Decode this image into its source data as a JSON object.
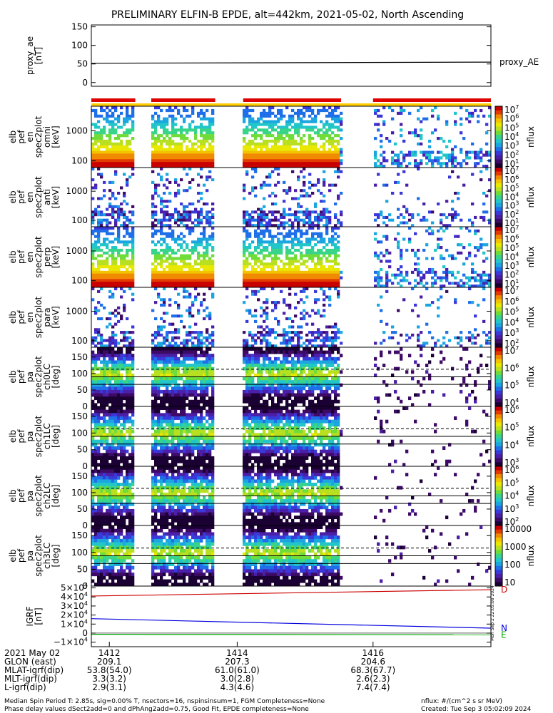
{
  "title": "PRELIMINARY ELFIN-B EPDE, alt=442km, 2021-05-02, North Ascending",
  "chart_data": {
    "type": "heatmap",
    "panels": [
      {
        "id": "proxy_ae",
        "kind": "line",
        "ylabel": [
          "proxy_ae",
          "[nT]"
        ],
        "yticks": [
          "150",
          "100",
          "50",
          "0"
        ],
        "ylim": [
          -10,
          155
        ],
        "series": [
          {
            "name": "proxy_AE",
            "x": [
              0,
              1
            ],
            "y": [
              52,
              55
            ],
            "color": "#000000"
          }
        ]
      },
      {
        "id": "en_omni",
        "kind": "spectrogram",
        "ylabel": [
          "elb",
          "pef",
          "en",
          "spec2plot",
          "omni",
          "[keV]"
        ],
        "yticks": [
          "1000",
          "100"
        ],
        "yscale": "log",
        "ylim": [
          60,
          6500
        ],
        "colorbar": {
          "label": "nflux",
          "ticks": [
            "10^7",
            "10^6",
            "10^5",
            "10^4",
            "10^3",
            "10^2",
            "10^1"
          ]
        }
      },
      {
        "id": "en_anti",
        "kind": "spectrogram",
        "ylabel": [
          "elb",
          "pef",
          "en",
          "spec2plot",
          "anti",
          "[keV]"
        ],
        "yticks": [
          "1000",
          "100"
        ],
        "yscale": "log",
        "ylim": [
          60,
          6500
        ],
        "colorbar": {
          "label": "nflux",
          "ticks": [
            "10^7",
            "10^6",
            "10^5",
            "10^4",
            "10^3",
            "10^2",
            "10^1"
          ]
        }
      },
      {
        "id": "en_perp",
        "kind": "spectrogram",
        "ylabel": [
          "elb",
          "pef",
          "en",
          "spec2plot",
          "perp",
          "[keV]"
        ],
        "yticks": [
          "1000",
          "100"
        ],
        "yscale": "log",
        "ylim": [
          60,
          6500
        ],
        "colorbar": {
          "label": "nflux",
          "ticks": [
            "10^7",
            "10^6",
            "10^5",
            "10^4",
            "10^3",
            "10^2",
            "10^1"
          ]
        }
      },
      {
        "id": "en_para",
        "kind": "spectrogram",
        "ylabel": [
          "elb",
          "pef",
          "en",
          "spec2plot",
          "para",
          "[keV]"
        ],
        "yticks": [
          "1000",
          "100"
        ],
        "yscale": "log",
        "ylim": [
          60,
          6500
        ],
        "colorbar": {
          "label": "nflux",
          "ticks": [
            "10^7",
            "10^6",
            "10^5",
            "10^4",
            "10^3",
            "10^2"
          ]
        }
      },
      {
        "id": "pa_ch0",
        "kind": "spectrogram",
        "ylabel": [
          "elb",
          "pef",
          "pa",
          "spec2plot",
          "ch0LC",
          "[deg]"
        ],
        "yticks": [
          "150",
          "100",
          "50",
          "0"
        ],
        "ylim": [
          0,
          180
        ],
        "colorbar": {
          "label": "nflux",
          "ticks": [
            "10^7",
            "10^6",
            "10^5",
            "10^4"
          ]
        }
      },
      {
        "id": "pa_ch1",
        "kind": "spectrogram",
        "ylabel": [
          "elb",
          "pef",
          "pa",
          "spec2plot",
          "ch1LC",
          "[deg]"
        ],
        "yticks": [
          "150",
          "100",
          "50",
          "0"
        ],
        "ylim": [
          0,
          180
        ],
        "colorbar": {
          "label": "nflux",
          "ticks": [
            "10^6",
            "10^5",
            "10^4",
            "10^3"
          ]
        }
      },
      {
        "id": "pa_ch2",
        "kind": "spectrogram",
        "ylabel": [
          "elb",
          "pef",
          "pa",
          "spec2plot",
          "ch2LC",
          "[deg]"
        ],
        "yticks": [
          "150",
          "100",
          "50",
          "0"
        ],
        "ylim": [
          0,
          180
        ],
        "colorbar": {
          "label": "nflux",
          "ticks": [
            "10^6",
            "10^5",
            "10^4",
            "10^3",
            "10^2"
          ]
        }
      },
      {
        "id": "pa_ch3",
        "kind": "spectrogram",
        "ylabel": [
          "elb",
          "pef",
          "pa",
          "spec2plot",
          "ch3LC",
          "[deg]"
        ],
        "yticks": [
          "150",
          "100",
          "50",
          "0"
        ],
        "ylim": [
          0,
          180
        ],
        "colorbar": {
          "label": "nflux",
          "ticks": [
            "10000",
            "1000",
            "100",
            "10"
          ]
        }
      },
      {
        "id": "igrf",
        "kind": "line",
        "ylabel": [
          "IGRF",
          "[nT]"
        ],
        "yticks": [
          "5×10^4",
          "4×10^4",
          "3×10^4",
          "2×10^4",
          "1×10^4",
          "0",
          "−1×10^4"
        ],
        "ylim": [
          -15000,
          52000
        ],
        "series": [
          {
            "name": "D",
            "x": [
              0,
              1
            ],
            "y": [
              41000,
              48000
            ],
            "color": "#cc0000"
          },
          {
            "name": "N",
            "x": [
              0,
              1
            ],
            "y": [
              16000,
              5500
            ],
            "color": "#0000dd"
          },
          {
            "name": "E",
            "x": [
              0,
              1
            ],
            "y": [
              -1300,
              -1800
            ],
            "color": "#00aa00"
          }
        ]
      }
    ],
    "pa_reference_lines": [
      {
        "deg": 113,
        "style": "dashed"
      },
      {
        "deg": 90,
        "style": "solid"
      },
      {
        "deg": 67,
        "style": "solid"
      }
    ],
    "time_axis": {
      "date_label": "2021 May 02",
      "ticks": [
        "1412",
        "1414",
        "1416"
      ],
      "rows": [
        {
          "label": "GLON (east)",
          "values": [
            "209.1",
            "207.3",
            "204.6"
          ]
        },
        {
          "label": "MLAT-igrf(dip)",
          "values": [
            "53.8(54.0)",
            "61.0(61.0)",
            "68.3(67.7)"
          ]
        },
        {
          "label": "MLT-igrf(dip)",
          "values": [
            "3.3(3.2)",
            "3.0(2.8)",
            "2.6(2.3)"
          ]
        },
        {
          "label": "L-igrf(dip)",
          "values": [
            "2.9(3.1)",
            "4.3(4.6)",
            "7.4(7.4)"
          ]
        }
      ]
    },
    "science_zones": [
      {
        "start": 0.0,
        "end": 0.11
      },
      {
        "start": 0.15,
        "end": 0.31
      },
      {
        "start": 0.38,
        "end": 0.625
      },
      {
        "start": 0.705,
        "end": 1.0
      }
    ]
  },
  "footer": {
    "line1": "Median Spin Period T: 2.85s, sig=0.00% T, nsectors=16, nspinsinsum=1, FGM Completeness=None",
    "line2": "Phase delay values dSect2add=0 and dPhAng2add=0.75, Good Fit, EPDE completeness=None",
    "units": "nflux: #/(cm^2 s sr MeV)",
    "created": "Created: Tue Sep  3 05:02:09 2024",
    "sidebar_stamp": "Mon Sep  2 22:05:08 2024"
  }
}
